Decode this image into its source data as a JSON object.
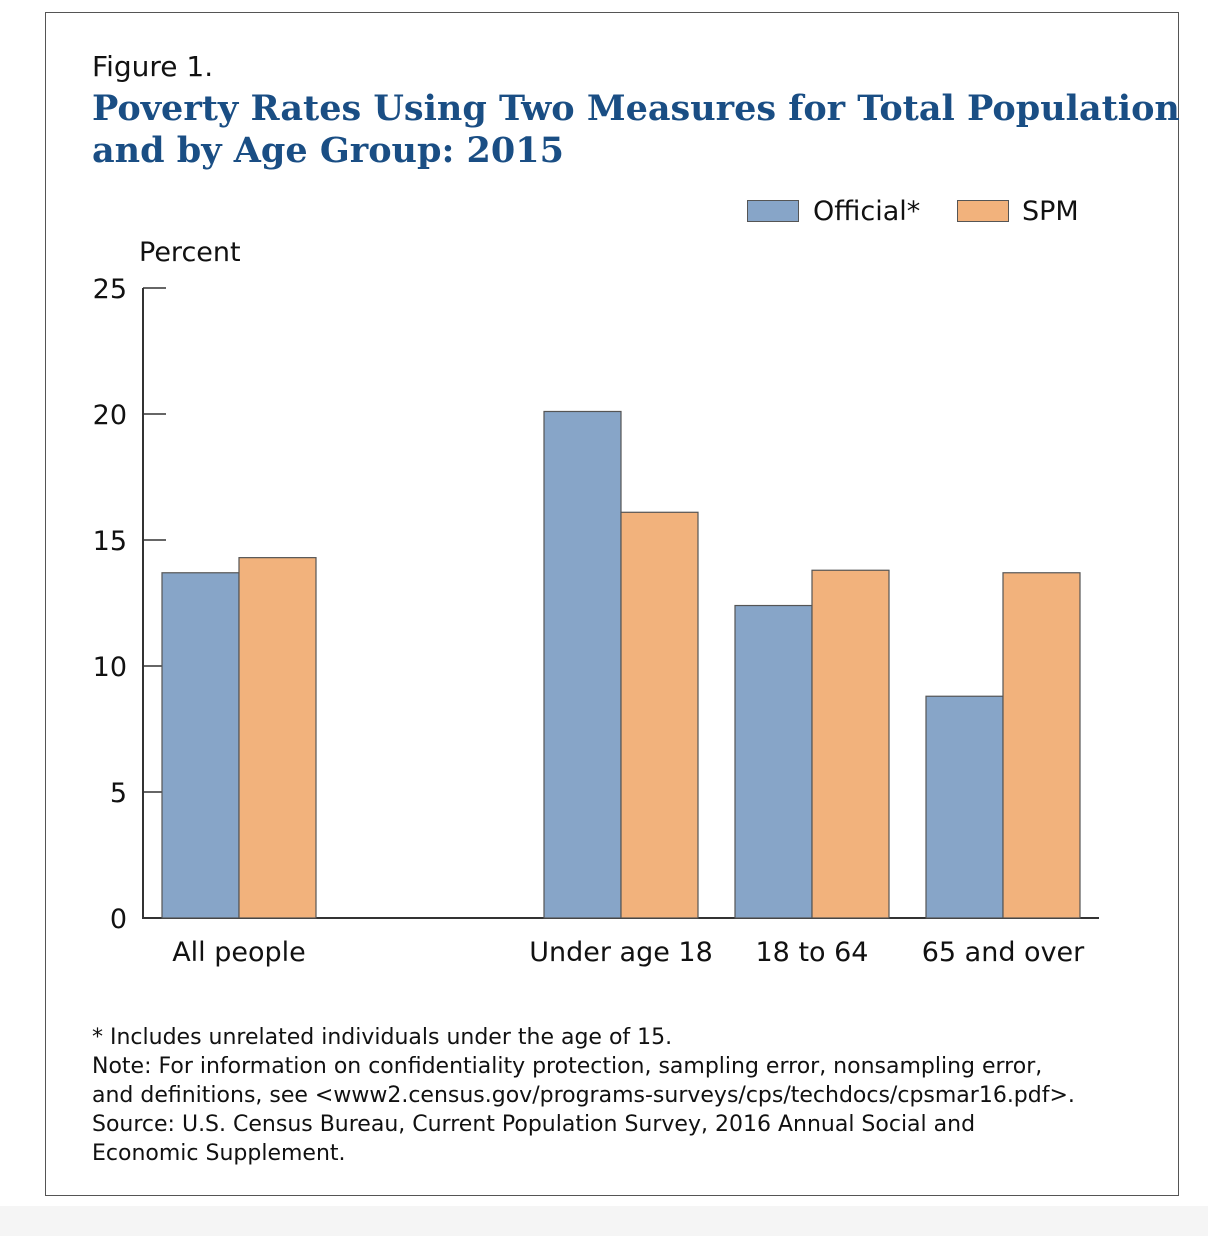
{
  "figure_label": "Figure 1.",
  "title_line1": "Poverty Rates Using Two Measures for Total Population",
  "title_line2": "and by Age Group: 2015",
  "notes": [
    "* Includes unrelated individuals under the age of 15.",
    "Note: For information on confidentiality protection, sampling error, nonsampling error,",
    "and definitions, see <www2.census.gov/programs-surveys/cps/techdocs/cpsmar16.pdf>.",
    "Source: U.S. Census Bureau, Current Population Survey, 2016 Annual Social and",
    "Economic Supplement."
  ],
  "chart_data": {
    "type": "bar",
    "title": "Poverty Rates Using Two Measures for Total Population and by Age Group: 2015",
    "ylabel": "Percent",
    "ylim": [
      0,
      25
    ],
    "yticks": [
      "0",
      "5",
      "10",
      "15",
      "20",
      "25"
    ],
    "categories": [
      "All people",
      "Under age 18",
      "18 to 64",
      "65 and over"
    ],
    "series": [
      {
        "name": "Official*",
        "color": "#87a5c8",
        "values": [
          13.7,
          20.1,
          12.4,
          8.8
        ]
      },
      {
        "name": "SPM",
        "color": "#f2b27c",
        "values": [
          14.3,
          16.1,
          13.8,
          13.7
        ]
      }
    ],
    "legend": "top-right",
    "grid": false
  }
}
